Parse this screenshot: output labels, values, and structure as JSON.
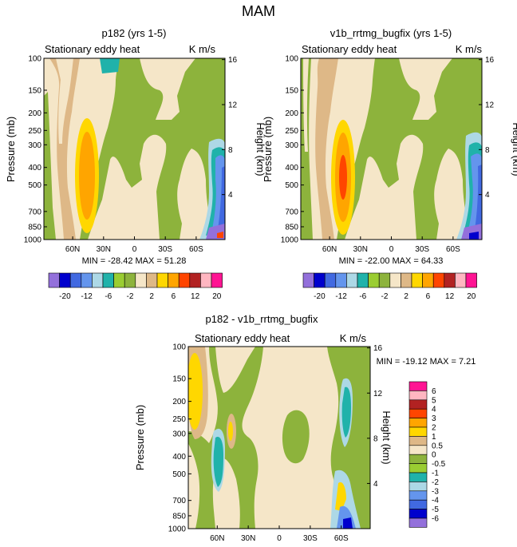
{
  "title": "MAM",
  "chart_data": [
    {
      "type": "heatmap",
      "title": "p182 (yrs 1-5)",
      "subtitle_left": "Stationary eddy heat",
      "subtitle_right": "K m/s",
      "ylabel": "Pressure (mb)",
      "ylabel_right": "Height (km)",
      "x_ticks": [
        "60N",
        "30N",
        "0",
        "30S",
        "60S"
      ],
      "x_values": [
        60,
        30,
        0,
        -30,
        -60
      ],
      "xlim": [
        88,
        -88
      ],
      "y_ticks": [
        "100",
        "150",
        "200",
        "250",
        "300",
        "400",
        "500",
        "700",
        "850",
        "1000"
      ],
      "y_values": [
        100,
        150,
        200,
        250,
        300,
        400,
        500,
        700,
        850,
        1000
      ],
      "ylim": [
        1000,
        100
      ],
      "right_ticks": [
        "16",
        "12",
        "8",
        "4"
      ],
      "right_values": [
        16,
        12,
        8,
        4
      ],
      "stats": "MIN = -28.42   MAX =  51.28",
      "min": -28.42,
      "max": 51.28
    },
    {
      "type": "heatmap",
      "title": "v1b_rrtmg_bugfix (yrs 1-5)",
      "subtitle_left": "Stationary eddy heat",
      "subtitle_right": "K m/s",
      "ylabel": "Pressure (mb)",
      "ylabel_right": "Height (km)",
      "x_ticks": [
        "60N",
        "30N",
        "0",
        "30S",
        "60S"
      ],
      "x_values": [
        60,
        30,
        0,
        -30,
        -60
      ],
      "xlim": [
        88,
        -88
      ],
      "y_ticks": [
        "100",
        "150",
        "200",
        "250",
        "300",
        "400",
        "500",
        "700",
        "850",
        "1000"
      ],
      "y_values": [
        100,
        150,
        200,
        250,
        300,
        400,
        500,
        700,
        850,
        1000
      ],
      "ylim": [
        1000,
        100
      ],
      "right_ticks": [
        "16",
        "12",
        "8",
        "4"
      ],
      "right_values": [
        16,
        12,
        8,
        4
      ],
      "stats": "MIN = -22.00   MAX =  64.33",
      "min": -22.0,
      "max": 64.33
    },
    {
      "type": "heatmap",
      "title": "p182 - v1b_rrtmg_bugfix",
      "subtitle_left": "Stationary eddy heat",
      "subtitle_right": "K m/s",
      "ylabel": "Pressure (mb)",
      "ylabel_right": "Height (km)",
      "x_ticks": [
        "60N",
        "30N",
        "0",
        "30S",
        "60S"
      ],
      "x_values": [
        60,
        30,
        0,
        -30,
        -60
      ],
      "xlim": [
        88,
        -88
      ],
      "y_ticks": [
        "100",
        "150",
        "200",
        "250",
        "300",
        "400",
        "500",
        "700",
        "850",
        "1000"
      ],
      "y_values": [
        100,
        150,
        200,
        250,
        300,
        400,
        500,
        700,
        850,
        1000
      ],
      "ylim": [
        1000,
        100
      ],
      "right_ticks": [
        "16",
        "12",
        "8",
        "4"
      ],
      "right_values": [
        16,
        12,
        8,
        4
      ],
      "stats": "MIN = -19.12   MAX =   7.21",
      "min": -19.12,
      "max": 7.21
    }
  ],
  "colorbar_top": {
    "colors": [
      "#9370db",
      "#0000cd",
      "#4169e1",
      "#6495ed",
      "#add8e6",
      "#20b2aa",
      "#9acd32",
      "#8db33c",
      "#f5e6c8",
      "#deb887",
      "#ffd700",
      "#ffa500",
      "#ff4500",
      "#b22222",
      "#ffb6c1",
      "#ff1493"
    ],
    "labels": [
      "-20",
      "-12",
      "-6",
      "-2",
      "2",
      "6",
      "12",
      "20"
    ]
  },
  "colorbar_diff": {
    "colors": [
      "#ff1493",
      "#ffb6c1",
      "#b22222",
      "#ff4500",
      "#ffa500",
      "#ffd700",
      "#deb887",
      "#f5e6c8",
      "#8db33c",
      "#9acd32",
      "#20b2aa",
      "#add8e6",
      "#6495ed",
      "#4169e1",
      "#0000cd",
      "#9370db"
    ],
    "labels": [
      "6",
      "5",
      "4",
      "3",
      "2",
      "1",
      "0.5",
      "0",
      "-0.5",
      "-1",
      "-2",
      "-3",
      "-4",
      "-5",
      "-6"
    ]
  }
}
